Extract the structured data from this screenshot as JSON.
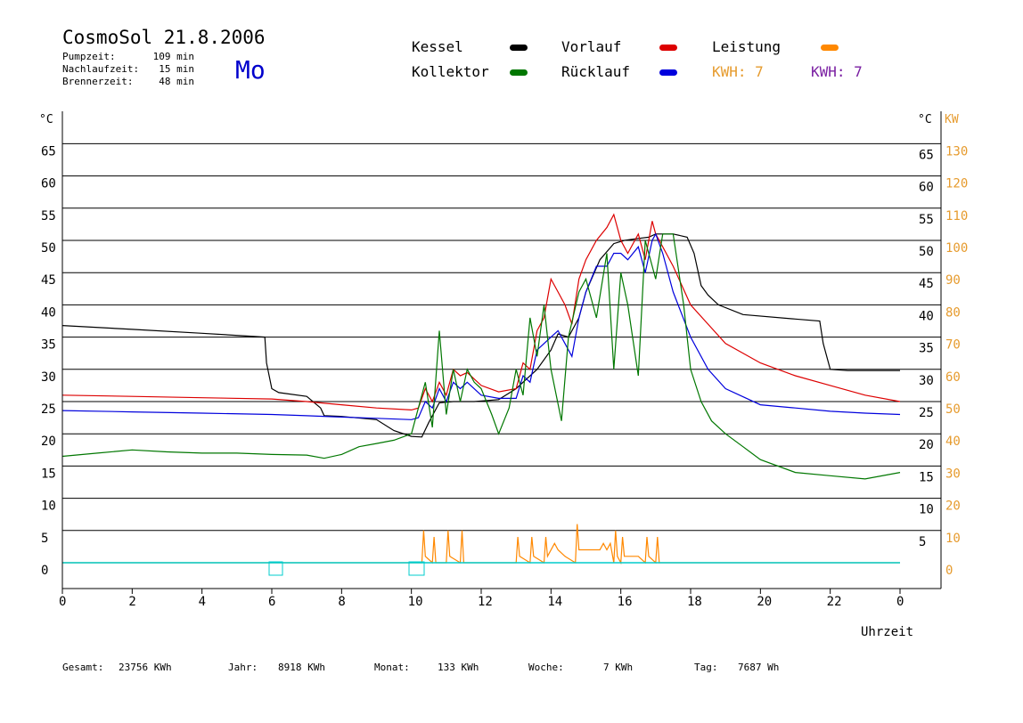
{
  "header": {
    "title": "CosmoSol 21.8.2006",
    "weekday": "Mo",
    "info": [
      {
        "label": "Pumpzeit:",
        "value": "109 min"
      },
      {
        "label": "Nachlaufzeit:",
        "value": "15 min"
      },
      {
        "label": "Brennerzeit:",
        "value": "48 min"
      }
    ]
  },
  "legend": {
    "kessel": "Kessel",
    "vorlauf": "Vorlauf",
    "leistung": "Leistung",
    "kollektor": "Kollektor",
    "ruecklauf": "Rücklauf",
    "kwh1": "KWH: 7",
    "kwh2": "KWH: 7"
  },
  "footer": {
    "gesamt_label": "Gesamt:",
    "gesamt_value": "23756 KWh",
    "jahr_label": "Jahr:",
    "jahr_value": "8918 KWh",
    "monat_label": "Monat:",
    "monat_value": "133 KWh",
    "woche_label": "Woche:",
    "woche_value": "7 KWh",
    "tag_label": "Tag:",
    "tag_value": "7687 Wh"
  },
  "colors": {
    "kessel": "#000000",
    "vorlauf": "#dd0000",
    "ruecklauf": "#0000dd",
    "kollektor": "#007700",
    "leistung": "#ff8800",
    "kwh2": "#7a1fa2",
    "zero": "#00cccc",
    "axis_right_kw": "#e69b2e"
  },
  "chart_data": {
    "type": "line",
    "xlabel": "Uhrzeit",
    "ylabel_left": "°C",
    "ylabel_right_temp": "°C",
    "ylabel_right_power": "KW",
    "xlim": [
      0,
      24
    ],
    "ylim": [
      -4,
      69
    ],
    "x_ticks": [
      "0",
      "2",
      "4",
      "6",
      "8",
      "10",
      "12",
      "14",
      "16",
      "18",
      "20",
      "22",
      "0"
    ],
    "y_ticks_left": [
      "0",
      "5",
      "10",
      "15",
      "20",
      "25",
      "30",
      "35",
      "40",
      "45",
      "50",
      "55",
      "60",
      "65"
    ],
    "y_ticks_right_temp": [
      "5",
      "10",
      "15",
      "20",
      "25",
      "30",
      "35",
      "40",
      "45",
      "50",
      "55",
      "60",
      "65"
    ],
    "y_ticks_right_kw": [
      "0",
      "10",
      "20",
      "30",
      "40",
      "50",
      "60",
      "70",
      "80",
      "90",
      "100",
      "110",
      "120",
      "130"
    ],
    "grid_y": true,
    "series": [
      {
        "name": "Kessel",
        "color": "#000000",
        "x": [
          0,
          2,
          4,
          5.8,
          5.85,
          6.0,
          6.2,
          7.0,
          7.4,
          7.5,
          8.0,
          9.0,
          9.5,
          10.0,
          10.3,
          10.5,
          10.8,
          11.2,
          11.8,
          12.5,
          13.0,
          13.3,
          13.6,
          14.0,
          14.2,
          14.5,
          14.8,
          15.0,
          15.4,
          15.8,
          16.1,
          16.5,
          16.8,
          17.0,
          17.5,
          17.9,
          18.1,
          18.3,
          18.5,
          18.8,
          19.5,
          21.0,
          21.7,
          21.8,
          22.0,
          22.5,
          23.0,
          24.0
        ],
        "y": [
          36.8,
          36.2,
          35.6,
          35.0,
          31.0,
          27.0,
          26.4,
          25.8,
          24.0,
          22.8,
          22.7,
          22.2,
          20.5,
          19.6,
          19.5,
          21.8,
          24.8,
          25.0,
          25.0,
          25.3,
          27.0,
          28.5,
          30.0,
          33.0,
          35.5,
          35.0,
          38.0,
          42.0,
          47.0,
          49.5,
          50.0,
          50.3,
          50.5,
          51.0,
          51.0,
          50.5,
          48.0,
          43.0,
          41.5,
          40.0,
          38.5,
          37.8,
          37.5,
          34.0,
          30.0,
          29.8,
          29.8,
          29.8
        ]
      },
      {
        "name": "Vorlauf",
        "color": "#dd0000",
        "x": [
          0,
          2,
          4,
          6,
          7,
          8,
          9,
          10,
          10.2,
          10.4,
          10.6,
          10.8,
          11.0,
          11.2,
          11.4,
          11.6,
          12.0,
          12.5,
          13.0,
          13.2,
          13.4,
          13.6,
          13.8,
          14.0,
          14.2,
          14.4,
          14.6,
          14.8,
          15.0,
          15.3,
          15.6,
          15.8,
          16.0,
          16.2,
          16.5,
          16.7,
          16.9,
          17.0,
          17.2,
          17.5,
          18.0,
          18.5,
          19,
          20,
          21,
          22,
          23,
          24
        ],
        "y": [
          26,
          25.8,
          25.6,
          25.4,
          25.0,
          24.5,
          24.0,
          23.7,
          24,
          27,
          25,
          28,
          26,
          30,
          29,
          29.5,
          27.5,
          26.5,
          27,
          31,
          30,
          36,
          38,
          44,
          42,
          40,
          37,
          44,
          47,
          50,
          52,
          54,
          50,
          48,
          51,
          47,
          53,
          51,
          49,
          46,
          40,
          37,
          34,
          31,
          29,
          27.5,
          26,
          25
        ]
      },
      {
        "name": "Rücklauf",
        "color": "#0000dd",
        "x": [
          0,
          2,
          4,
          6,
          7,
          8,
          9,
          10,
          10.2,
          10.4,
          10.6,
          10.8,
          11.0,
          11.2,
          11.4,
          11.6,
          12.0,
          12.5,
          13.0,
          13.2,
          13.4,
          13.6,
          13.8,
          14.0,
          14.2,
          14.4,
          14.6,
          14.8,
          15.0,
          15.3,
          15.6,
          15.8,
          16.0,
          16.2,
          16.5,
          16.7,
          16.9,
          17.0,
          17.2,
          17.5,
          18.0,
          18.5,
          19,
          20,
          21,
          22,
          23,
          24
        ],
        "y": [
          23.6,
          23.4,
          23.2,
          23.0,
          22.8,
          22.6,
          22.4,
          22.2,
          22.5,
          25,
          24,
          27,
          25,
          28,
          27,
          28,
          26,
          25.5,
          25.5,
          29,
          28,
          33,
          34,
          35,
          36,
          34,
          32,
          38,
          42,
          46,
          46,
          48,
          48,
          47,
          49,
          45,
          50,
          51,
          48,
          42,
          35,
          30,
          27,
          24.5,
          24,
          23.5,
          23.2,
          23
        ]
      },
      {
        "name": "Kollektor",
        "color": "#007700",
        "x": [
          0,
          1,
          2,
          3,
          4,
          5,
          6,
          7,
          7.5,
          8,
          8.5,
          9,
          9.5,
          10,
          10.2,
          10.4,
          10.6,
          10.8,
          11.0,
          11.2,
          11.4,
          11.6,
          11.8,
          12.0,
          12.3,
          12.5,
          12.8,
          13.0,
          13.2,
          13.4,
          13.6,
          13.8,
          14.0,
          14.3,
          14.5,
          14.8,
          15.0,
          15.3,
          15.6,
          15.8,
          16.0,
          16.2,
          16.5,
          16.7,
          17.0,
          17.2,
          17.5,
          17.8,
          18.0,
          18.3,
          18.6,
          19.0,
          19.5,
          20,
          21,
          22,
          23,
          24
        ],
        "y": [
          16.5,
          17,
          17.5,
          17.2,
          17.0,
          17.0,
          16.8,
          16.7,
          16.2,
          16.8,
          18,
          18.5,
          19,
          20,
          24,
          28,
          21,
          36,
          23,
          30,
          25,
          30,
          28,
          27,
          23,
          20,
          24,
          30,
          26,
          38,
          32,
          40,
          30,
          22,
          35,
          42,
          44,
          38,
          48,
          30,
          45,
          40,
          29,
          50,
          44,
          51,
          51,
          40,
          30,
          25,
          22,
          20,
          18,
          16,
          14,
          13.5,
          13.0,
          14.0
        ]
      },
      {
        "name": "Leistung",
        "color": "#ff8800",
        "x": [
          0,
          10.3,
          10.35,
          10.4,
          10.6,
          10.65,
          10.7,
          11.0,
          11.05,
          11.1,
          11.4,
          11.45,
          11.5,
          11.8,
          13.0,
          13.05,
          13.1,
          13.4,
          13.45,
          13.5,
          13.8,
          13.85,
          13.9,
          14.1,
          14.2,
          14.4,
          14.7,
          14.75,
          14.8,
          15.1,
          15.4,
          15.5,
          15.6,
          15.7,
          15.8,
          15.85,
          15.9,
          16.0,
          16.05,
          16.1,
          16.5,
          16.7,
          16.75,
          16.8,
          17.0,
          17.05,
          17.1,
          17.3,
          24
        ],
        "y": [
          0,
          0,
          5,
          1,
          0,
          4,
          0,
          0,
          5,
          1,
          0,
          5,
          0,
          0,
          0,
          4,
          1,
          0,
          4,
          1,
          0,
          4,
          1,
          3,
          2,
          1,
          0,
          6,
          2,
          2,
          2,
          3,
          2,
          3,
          0,
          5,
          1,
          0,
          4,
          1,
          1,
          0,
          4,
          1,
          0,
          4,
          0,
          0,
          0
        ]
      }
    ]
  }
}
